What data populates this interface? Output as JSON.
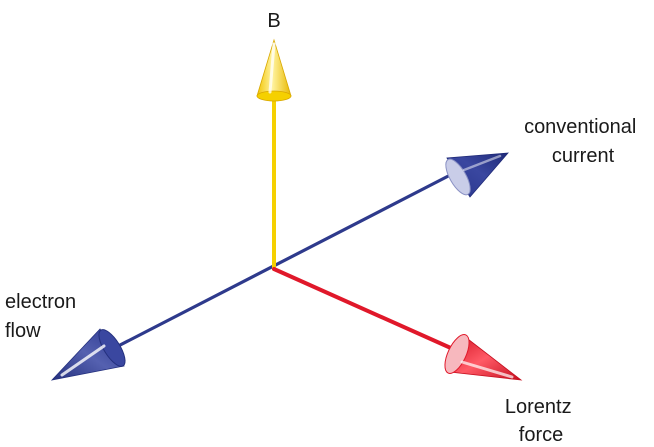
{
  "diagram": {
    "labels": {
      "b": "B",
      "conventional_current": [
        "conventional",
        "current"
      ],
      "electron_flow": [
        "electron",
        "flow"
      ],
      "lorentz_force": [
        "Lorentz",
        "force"
      ]
    },
    "colors": {
      "b_field": "#f5d000",
      "b_field_dark": "#d9a800",
      "current_axis": "#2e3a8c",
      "current_cone": "#2f3b91",
      "current_cone_base": "#c9cde8",
      "force": "#e0182a",
      "force_cone_base": "#f7b8be"
    },
    "icons": {
      "b_field_arrow": "cone-arrow-up",
      "conventional_current_arrow": "cone-arrow-up-right",
      "electron_flow_arrow": "cone-arrow-down-left",
      "lorentz_force_arrow": "cone-arrow-down-right"
    }
  }
}
